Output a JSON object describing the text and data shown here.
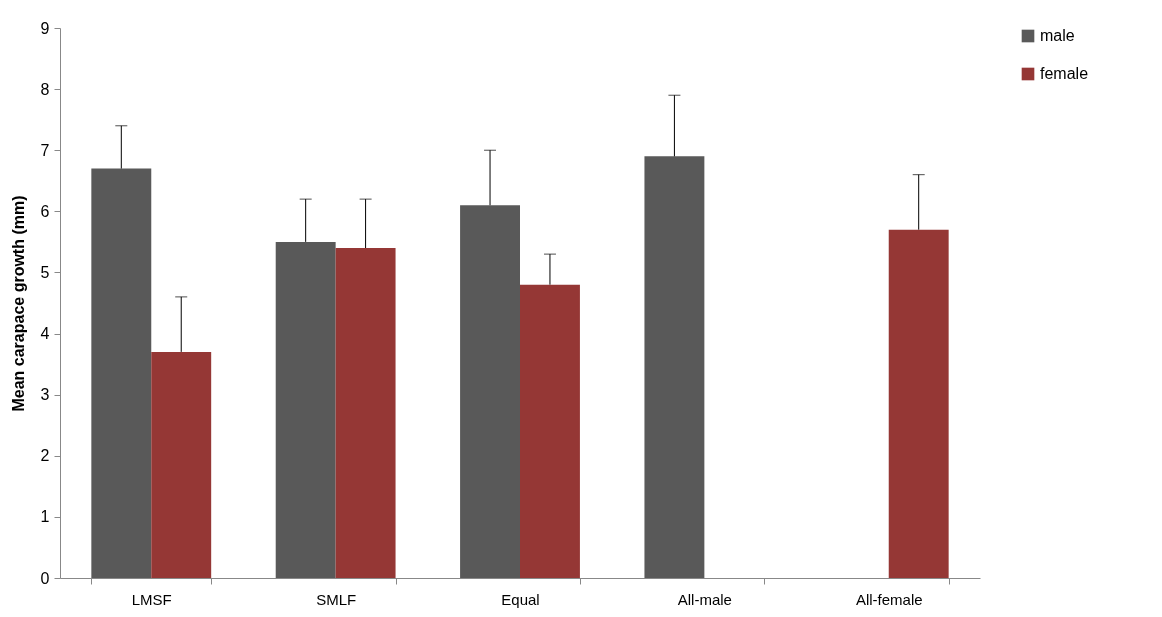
{
  "chart_data": {
    "type": "bar",
    "ylabel": "Mean carapace growth (mm)",
    "categories": [
      "LMSF",
      "SMLF",
      "Equal",
      "All-male",
      "All-female"
    ],
    "series": [
      {
        "name": "male",
        "color": "#595959",
        "values": [
          6.7,
          5.5,
          6.1,
          6.9,
          null
        ],
        "errors": [
          [
            6.7,
            7.4
          ],
          [
            5.5,
            6.2
          ],
          [
            6.1,
            7.0
          ],
          [
            6.9,
            7.9
          ],
          null
        ]
      },
      {
        "name": "female",
        "color": "#953735",
        "values": [
          3.7,
          5.4,
          4.8,
          null,
          5.7
        ],
        "errors": [
          [
            3.7,
            4.6
          ],
          [
            5.4,
            6.2
          ],
          [
            4.8,
            5.3
          ],
          null,
          [
            5.7,
            6.6
          ]
        ]
      }
    ],
    "ylim": [
      0,
      9
    ],
    "yticks": [
      0,
      1,
      2,
      3,
      4,
      5,
      6,
      7,
      8,
      9
    ],
    "grid": false,
    "legend": "right"
  }
}
